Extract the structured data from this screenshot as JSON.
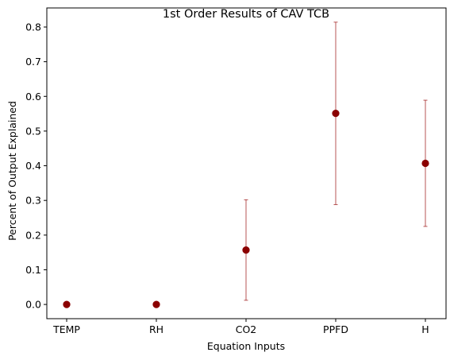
{
  "chart_data": {
    "type": "scatter",
    "title": "1st Order Results of CAV TCB",
    "xlabel": "Equation Inputs",
    "ylabel": "Percent of Output Explained",
    "categories": [
      "TEMP",
      "RH",
      "CO2",
      "PPFD",
      "H"
    ],
    "values": [
      0.0,
      0.0,
      0.157,
      0.551,
      0.407
    ],
    "error_low": [
      0.0,
      0.0,
      0.012,
      0.288,
      0.225
    ],
    "error_high": [
      0.0,
      0.0,
      0.302,
      0.814,
      0.589
    ],
    "ylim": [
      -0.041,
      0.855
    ],
    "yticks": [
      0.0,
      0.1,
      0.2,
      0.3,
      0.4,
      0.5,
      0.6,
      0.7,
      0.8
    ],
    "ytick_labels": [
      "0.0",
      "0.1",
      "0.2",
      "0.3",
      "0.4",
      "0.5",
      "0.6",
      "0.7",
      "0.8"
    ],
    "grid": false,
    "legend": "none",
    "marker_color": "#8b0000",
    "errorbar_color": "#a52a2a"
  }
}
